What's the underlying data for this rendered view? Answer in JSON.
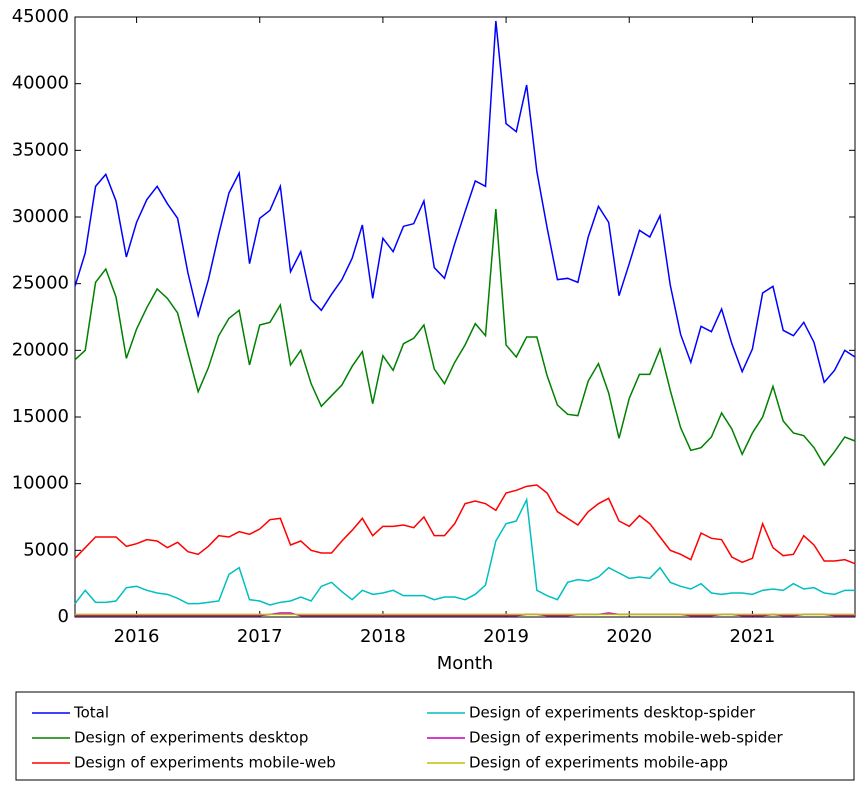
{
  "chart_data": {
    "type": "line",
    "x_label": "Month",
    "x": [
      2015.5,
      2015.583,
      2015.667,
      2015.75,
      2015.833,
      2015.917,
      2016,
      2016.083,
      2016.167,
      2016.25,
      2016.333,
      2016.417,
      2016.5,
      2016.583,
      2016.667,
      2016.75,
      2016.833,
      2016.917,
      2017,
      2017.083,
      2017.167,
      2017.25,
      2017.333,
      2017.417,
      2017.5,
      2017.583,
      2017.667,
      2017.75,
      2017.833,
      2017.917,
      2018,
      2018.083,
      2018.167,
      2018.25,
      2018.333,
      2018.417,
      2018.5,
      2018.583,
      2018.667,
      2018.75,
      2018.833,
      2018.917,
      2019,
      2019.083,
      2019.167,
      2019.25,
      2019.333,
      2019.417,
      2019.5,
      2019.583,
      2019.667,
      2019.75,
      2019.833,
      2019.917,
      2020,
      2020.083,
      2020.167,
      2020.25,
      2020.333,
      2020.417,
      2020.5,
      2020.583,
      2020.667,
      2020.75,
      2020.833,
      2020.917,
      2021,
      2021.083,
      2021.167,
      2021.25,
      2021.333,
      2021.417,
      2021.5,
      2021.583,
      2021.667,
      2021.75,
      2021.833
    ],
    "xlim": [
      2015.5,
      2021.833
    ],
    "xticks": [
      2016,
      2017,
      2018,
      2019,
      2020,
      2021
    ],
    "ylim": [
      0,
      45000
    ],
    "yticks": [
      0,
      5000,
      10000,
      15000,
      20000,
      25000,
      30000,
      35000,
      40000,
      45000
    ],
    "legend": "below",
    "series": [
      {
        "name": "Total",
        "color": "#0000ff",
        "values": [
          24800,
          27300,
          32300,
          33200,
          31200,
          27000,
          29600,
          31300,
          32300,
          31000,
          29900,
          25800,
          22600,
          25300,
          28700,
          31800,
          33300,
          26500,
          29900,
          30500,
          32300,
          25900,
          27400,
          23800,
          23000,
          24200,
          25300,
          26900,
          29400,
          23900,
          28400,
          27400,
          29300,
          29500,
          31200,
          26200,
          25400,
          28000,
          30400,
          32700,
          32300,
          44700,
          37000,
          36400,
          39900,
          33400,
          29200,
          25300,
          25400,
          25100,
          28500,
          30800,
          29600,
          24100,
          26500,
          29000,
          28500,
          30100,
          24900,
          21200,
          19100,
          21800,
          21400,
          23100,
          20500,
          18400,
          20100,
          24300,
          24800,
          21500,
          21100,
          22100,
          20600,
          17600,
          18500,
          20000,
          19500
        ]
      },
      {
        "name": "Design of experiments desktop",
        "color": "#008000",
        "values": [
          19300,
          20000,
          25100,
          26100,
          24000,
          19400,
          21600,
          23200,
          24600,
          23900,
          22800,
          19800,
          16900,
          18700,
          21100,
          22400,
          23000,
          18900,
          21900,
          22100,
          23400,
          18900,
          20000,
          17500,
          15800,
          16600,
          17400,
          18800,
          19900,
          16000,
          19600,
          18500,
          20500,
          20900,
          21900,
          18600,
          17500,
          19100,
          20400,
          22000,
          21100,
          30600,
          20400,
          19500,
          21000,
          21000,
          18100,
          15900,
          15200,
          15100,
          17700,
          19000,
          16800,
          13400,
          16400,
          18200,
          18200,
          20100,
          17000,
          14200,
          12500,
          12700,
          13500,
          15300,
          14100,
          12200,
          13800,
          15000,
          17300,
          14700,
          13800,
          13600,
          12700,
          11400,
          12400,
          13500,
          13200
        ]
      },
      {
        "name": "Design of experiments mobile-web",
        "color": "#ff0000",
        "values": [
          4400,
          5200,
          6000,
          6000,
          6000,
          5300,
          5500,
          5800,
          5700,
          5200,
          5600,
          4900,
          4700,
          5300,
          6100,
          6000,
          6400,
          6200,
          6600,
          7300,
          7400,
          5400,
          5700,
          5000,
          4800,
          4800,
          5700,
          6500,
          7400,
          6100,
          6800,
          6800,
          6900,
          6700,
          7500,
          6100,
          6100,
          7000,
          8500,
          8700,
          8500,
          8000,
          9300,
          9500,
          9800,
          9900,
          9300,
          7900,
          7400,
          6900,
          7900,
          8500,
          8900,
          7200,
          6800,
          7600,
          7000,
          6000,
          5000,
          4700,
          4300,
          6300,
          5900,
          5800,
          4500,
          4100,
          4400,
          7000,
          5200,
          4600,
          4700,
          6100,
          5400,
          4200,
          4200,
          4300,
          4000
        ]
      },
      {
        "name": "Design of experiments desktop-spider",
        "color": "#00bfbf",
        "values": [
          1000,
          2000,
          1100,
          1100,
          1200,
          2200,
          2300,
          2000,
          1800,
          1700,
          1400,
          1000,
          1000,
          1100,
          1200,
          3200,
          3700,
          1300,
          1200,
          900,
          1100,
          1200,
          1500,
          1200,
          2300,
          2600,
          1900,
          1300,
          2000,
          1700,
          1800,
          2000,
          1600,
          1600,
          1600,
          1300,
          1500,
          1500,
          1300,
          1700,
          2400,
          5700,
          7000,
          7200,
          8800,
          2000,
          1600,
          1300,
          2600,
          2800,
          2700,
          3000,
          3700,
          3300,
          2900,
          3000,
          2900,
          3700,
          2600,
          2300,
          2100,
          2500,
          1800,
          1700,
          1800,
          1800,
          1700,
          2000,
          2100,
          2000,
          2500,
          2100,
          2200,
          1800,
          1700,
          2000,
          2000
        ]
      },
      {
        "name": "Design of experiments mobile-web-spider",
        "color": "#bf00bf",
        "values": [
          100,
          100,
          100,
          100,
          100,
          100,
          100,
          100,
          100,
          100,
          100,
          100,
          100,
          100,
          100,
          100,
          100,
          100,
          100,
          200,
          300,
          300,
          100,
          100,
          100,
          100,
          100,
          100,
          100,
          100,
          100,
          100,
          100,
          100,
          100,
          100,
          100,
          100,
          100,
          100,
          100,
          100,
          100,
          100,
          200,
          200,
          100,
          100,
          100,
          200,
          200,
          200,
          300,
          200,
          200,
          200,
          200,
          200,
          200,
          200,
          100,
          100,
          100,
          200,
          200,
          100,
          100,
          100,
          200,
          100,
          100,
          200,
          200,
          200,
          100,
          100,
          100
        ]
      },
      {
        "name": "Design of experiments mobile-app",
        "color": "#bfbf00",
        "values": [
          200,
          200,
          200,
          200,
          200,
          200,
          200,
          200,
          200,
          200,
          200,
          200,
          200,
          200,
          200,
          200,
          200,
          200,
          200,
          200,
          200,
          200,
          200,
          200,
          200,
          200,
          200,
          200,
          200,
          200,
          200,
          200,
          200,
          200,
          200,
          200,
          200,
          200,
          200,
          200,
          200,
          200,
          200,
          200,
          200,
          200,
          200,
          200,
          200,
          200,
          200,
          200,
          200,
          200,
          200,
          200,
          200,
          200,
          200,
          200,
          200,
          200,
          200,
          200,
          200,
          200,
          200,
          200,
          200,
          200,
          200,
          200,
          200,
          200,
          200,
          200,
          200
        ]
      }
    ]
  }
}
